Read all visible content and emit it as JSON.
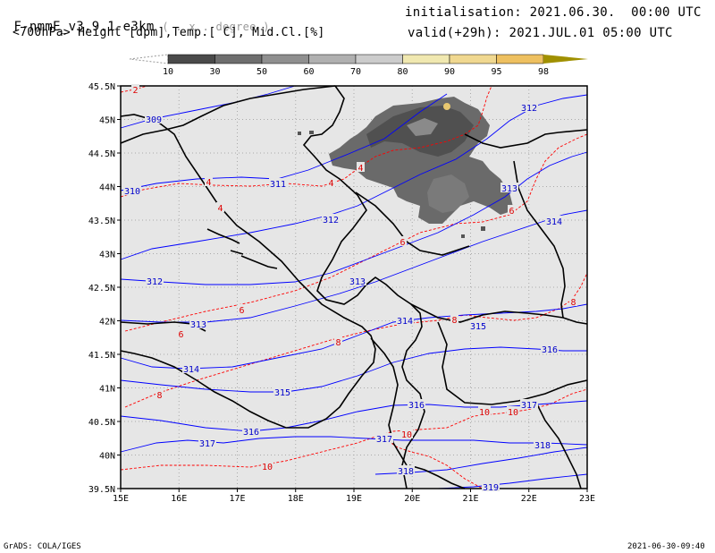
{
  "header": {
    "model": "F-nmmE_v3.9.1-e3km",
    "grid_note": "( . x . degree )",
    "fields": "<700hPa> Height [dpm],Temp.[ C], Mid.Cl.[%]",
    "init": "initialisation: 2021.06.30.  00:00 UTC",
    "valid": "valid(+29h): 2021.JUL.01 05:00 UTC"
  },
  "colorbar": {
    "labels": [
      "10",
      "30",
      "50",
      "60",
      "70",
      "80",
      "90",
      "95",
      "98"
    ],
    "colors": [
      "#4a4a4a",
      "#6e6e6e",
      "#8f8f8f",
      "#b0b0b0",
      "#cccccc",
      "#f0e8b0",
      "#f0d890",
      "#eec060",
      "#e8a820",
      "#a09000"
    ]
  },
  "map": {
    "lat_labels": [
      "45.5N",
      "45N",
      "44.5N",
      "44N",
      "43.5N",
      "43N",
      "42.5N",
      "42N",
      "41.5N",
      "41N",
      "40.5N",
      "40N",
      "39.5N"
    ],
    "lon_labels": [
      "15E",
      "16E",
      "17E",
      "18E",
      "19E",
      "20E",
      "21E",
      "22E",
      "23E"
    ],
    "height_contour_labels": [
      "309",
      "310",
      "311",
      "312",
      "312",
      "312",
      "313",
      "313",
      "313",
      "314",
      "314",
      "314",
      "315",
      "315",
      "316",
      "316",
      "316",
      "317",
      "317",
      "317",
      "318",
      "318",
      "319"
    ],
    "temp_contour_labels": [
      "2",
      "4",
      "4",
      "4",
      "4",
      "6",
      "6",
      "6",
      "6",
      "8",
      "8",
      "8",
      "8",
      "10",
      "10",
      "10",
      "10"
    ],
    "colors": {
      "background": "#e6e6e6",
      "height_contour": "#0000ff",
      "temp_contour": "#ff0000",
      "borders": "#000000"
    }
  },
  "footer": {
    "left": "GrADS: COLA/IGES",
    "right": "2021-06-30-09:40"
  }
}
